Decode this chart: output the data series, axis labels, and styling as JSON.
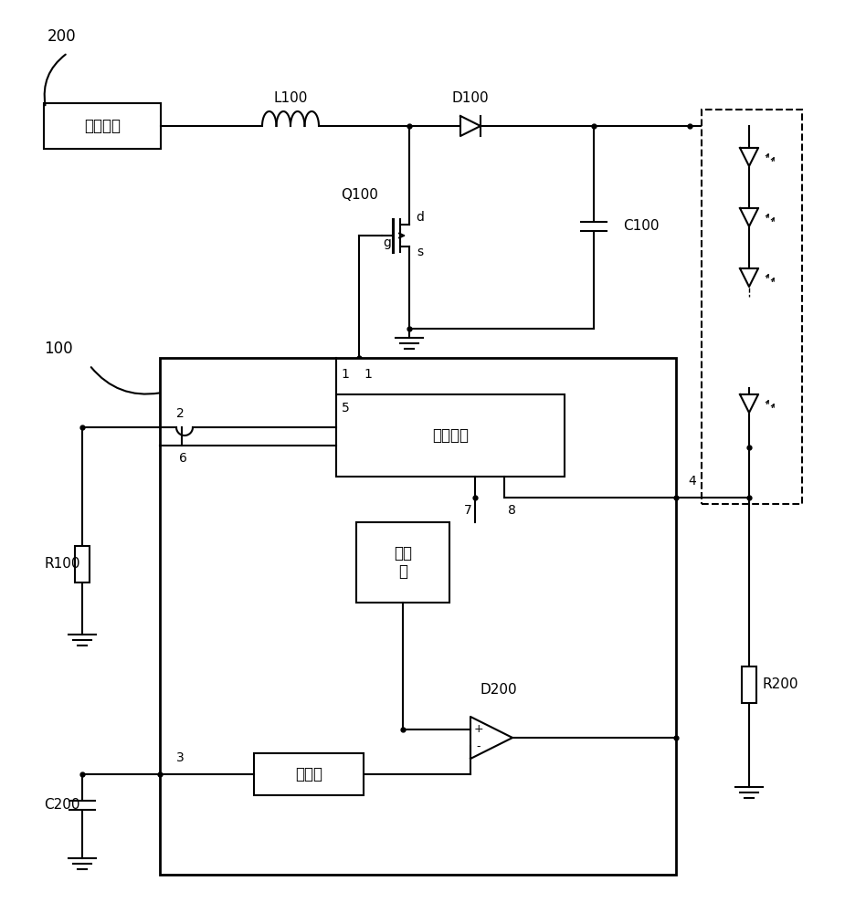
{
  "bg": "#ffffff",
  "lc": "#000000",
  "lw": 1.5,
  "fw": 9.25,
  "fh": 10.0,
  "dpi": 100,
  "texts": {
    "n200": "200",
    "n100": "100",
    "drive": "驱动电源",
    "L100": "L100",
    "D100": "D100",
    "Q100": "Q100",
    "d_label": "d",
    "g_label": "g",
    "s_label": "s",
    "C100": "C100",
    "control": "控制模块",
    "current": "电流\n源",
    "D200": "D200",
    "voltage": "电压源",
    "C200": "C200",
    "R100": "R100",
    "R200": "R200",
    "p1": "1",
    "p2": "2",
    "p3": "3",
    "p4": "4",
    "p5": "5",
    "p6": "6",
    "p7": "7",
    "p8": "8",
    "plus": "+",
    "minus": "-"
  }
}
